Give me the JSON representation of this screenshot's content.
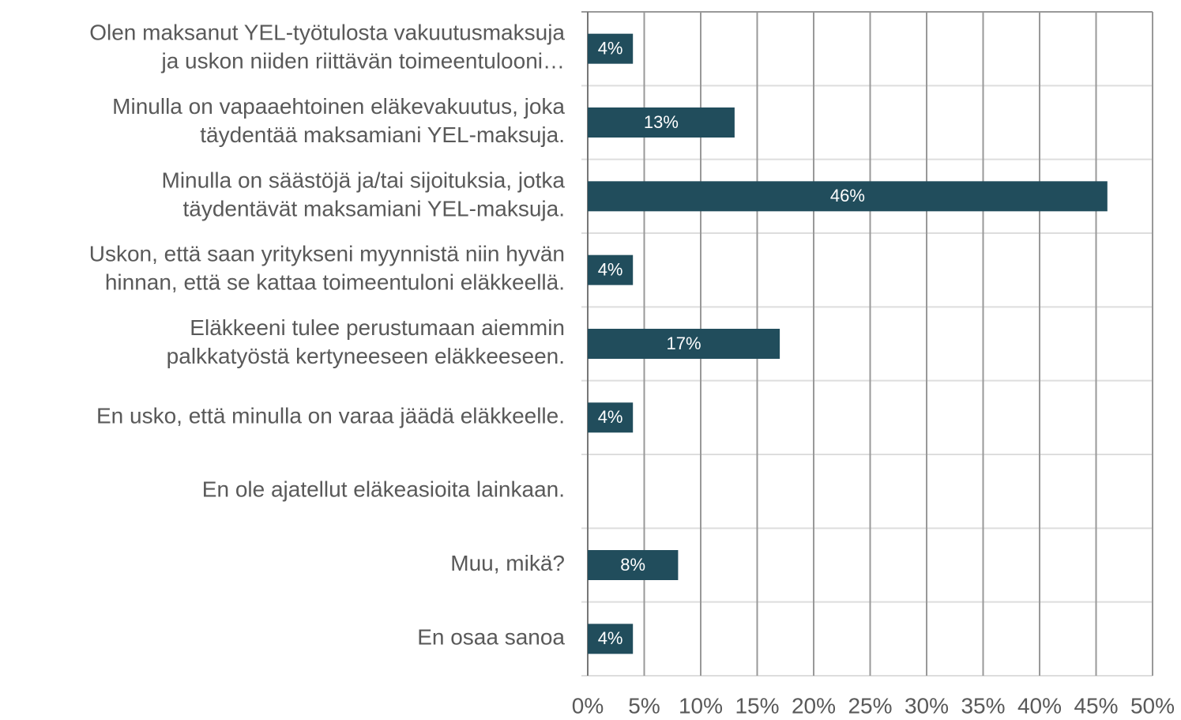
{
  "chart_data": {
    "type": "bar",
    "orientation": "horizontal",
    "categories": [
      [
        "Olen maksanut YEL-työtulosta vakuutusmaksuja",
        "ja uskon niiden riittävän toimeentulooni…"
      ],
      [
        "Minulla on vapaaehtoinen eläkevakuutus, joka",
        "täydentää maksamiani YEL-maksuja."
      ],
      [
        "Minulla on säästöjä ja/tai sijoituksia, jotka",
        "täydentävät maksamiani YEL-maksuja."
      ],
      [
        "Uskon, että saan yritykseni myynnistä niin hyvän",
        "hinnan, että se kattaa toimeentuloni eläkkeellä."
      ],
      [
        "Eläkkeeni tulee perustumaan aiemmin",
        "palkkatyöstä kertyneeseen eläkkeeseen."
      ],
      [
        "En usko, että minulla on varaa jäädä eläkkeelle."
      ],
      [
        "En ole ajatellut eläkeasioita lainkaan."
      ],
      [
        "Muu, mikä?"
      ],
      [
        "En osaa sanoa"
      ]
    ],
    "values": [
      4,
      13,
      46,
      4,
      17,
      4,
      null,
      8,
      4
    ],
    "value_labels": [
      "4%",
      "13%",
      "46%",
      "4%",
      "17%",
      "4%",
      null,
      "8%",
      "4%"
    ],
    "color": "#214d5c",
    "xlim": [
      0,
      50
    ],
    "xticks": [
      {
        "value": 0,
        "label": "0%"
      },
      {
        "value": 5,
        "label": "5%"
      },
      {
        "value": 10,
        "label": "10%"
      },
      {
        "value": 15,
        "label": "15%"
      },
      {
        "value": 20,
        "label": "20%"
      },
      {
        "value": 25,
        "label": "25%"
      },
      {
        "value": 30,
        "label": "30%"
      },
      {
        "value": 35,
        "label": "35%"
      },
      {
        "value": 40,
        "label": "40%"
      },
      {
        "value": 45,
        "label": "45%"
      },
      {
        "value": 50,
        "label": "50%"
      }
    ],
    "grid": true
  }
}
